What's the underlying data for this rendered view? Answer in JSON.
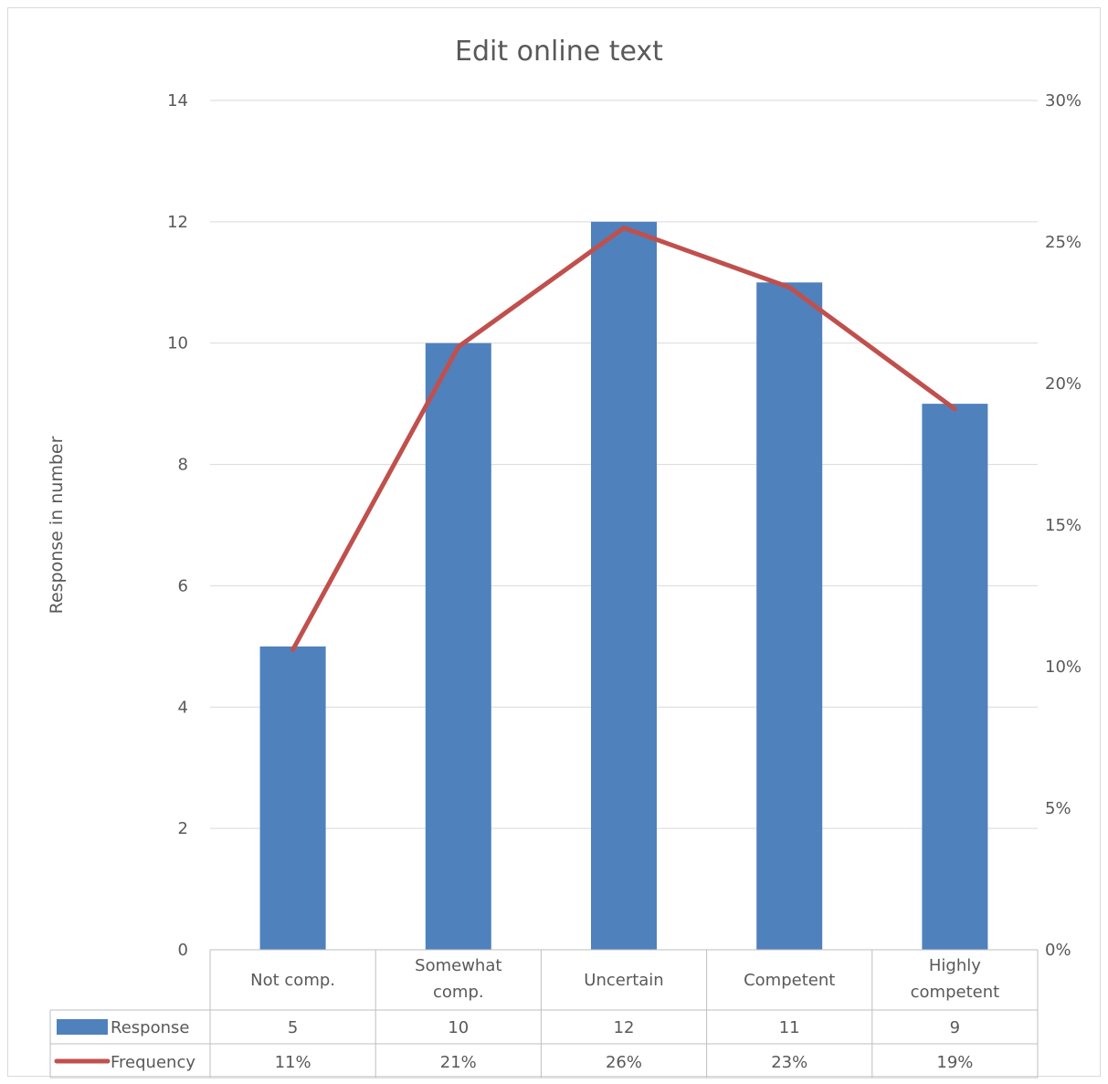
{
  "chart_data": {
    "type": "bar",
    "title": "Edit online text",
    "ylabel": "Response in number",
    "ylim": [
      0,
      14
    ],
    "y_ticks": [
      "0",
      "2",
      "4",
      "6",
      "8",
      "10",
      "12",
      "14"
    ],
    "y2lim": [
      0,
      0.3
    ],
    "y2_ticks": [
      "0%",
      "5%",
      "10%",
      "15%",
      "20%",
      "25%",
      "30%"
    ],
    "categories": [
      "Not comp.",
      "Somewhat comp.",
      "Uncertain",
      "Competent",
      "Highly competent"
    ],
    "series": [
      {
        "name": "Response",
        "type": "bar",
        "axis": "left",
        "color": "#4f81bd",
        "values": [
          5,
          10,
          12,
          11,
          9
        ],
        "labels": [
          "5",
          "10",
          "12",
          "11",
          "9"
        ]
      },
      {
        "name": "Frequency",
        "type": "line",
        "axis": "right",
        "color": "#c0504d",
        "values": [
          0.106,
          0.213,
          0.255,
          0.234,
          0.191
        ],
        "labels": [
          "11%",
          "21%",
          "26%",
          "23%",
          "19%"
        ]
      }
    ],
    "grid": true,
    "legend": "data-table"
  }
}
